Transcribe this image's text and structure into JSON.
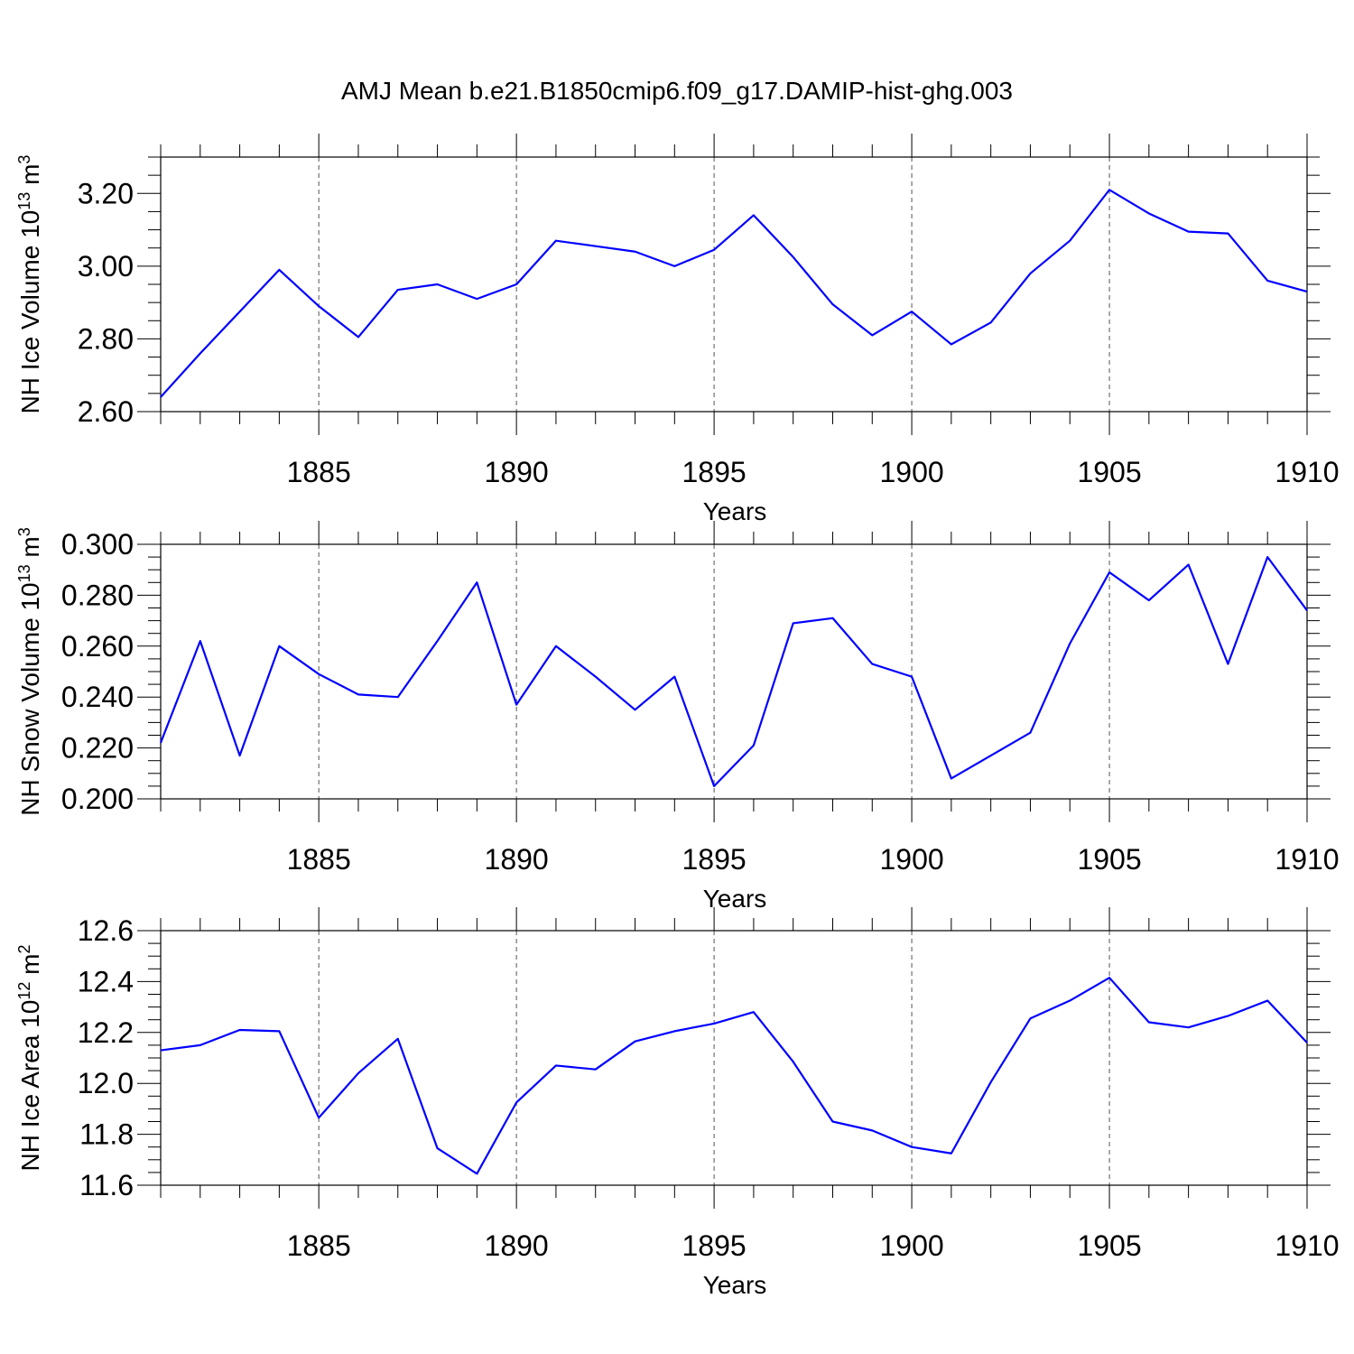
{
  "title": "AMJ Mean b.e21.B1850cmip6.f09_g17.DAMIP-hist-ghg.003",
  "series_color": "#0000ff",
  "chart_data": [
    {
      "type": "line",
      "id": "ice-volume",
      "ylabel": "NH Ice Volume",
      "ylabel_unit": "10",
      "ylabel_exp": "13",
      "ylabel_unit2": " m",
      "ylabel_exp2": "3",
      "xlabel": "Years",
      "xlim": [
        1881,
        1910
      ],
      "ylim": [
        2.6,
        3.3
      ],
      "yticks": [
        2.6,
        2.8,
        3.0,
        3.2
      ],
      "ytick_labels": [
        "2.60",
        "2.80",
        "3.00",
        "3.20"
      ],
      "yminor_step": 0.05,
      "xticks": [
        1885,
        1890,
        1895,
        1900,
        1905,
        1910
      ],
      "xtick_labels": [
        "1885",
        "1890",
        "1895",
        "1900",
        "1905",
        "1910"
      ],
      "x": [
        1881,
        1882,
        1883,
        1884,
        1885,
        1886,
        1887,
        1888,
        1889,
        1890,
        1891,
        1892,
        1893,
        1894,
        1895,
        1896,
        1897,
        1898,
        1899,
        1900,
        1901,
        1902,
        1903,
        1904,
        1905,
        1906,
        1907,
        1908,
        1909,
        1910
      ],
      "y": [
        2.64,
        2.76,
        2.875,
        2.99,
        2.89,
        2.805,
        2.935,
        2.95,
        2.91,
        2.95,
        3.07,
        3.055,
        3.04,
        3.0,
        3.045,
        3.14,
        3.025,
        2.895,
        2.81,
        2.875,
        2.785,
        2.845,
        2.98,
        3.07,
        3.21,
        3.145,
        3.095,
        3.09,
        2.96,
        2.93
      ]
    },
    {
      "type": "line",
      "id": "snow-volume",
      "ylabel": "NH Snow Volume",
      "ylabel_unit": "10",
      "ylabel_exp": "13",
      "ylabel_unit2": " m",
      "ylabel_exp2": "3",
      "xlabel": "Years",
      "xlim": [
        1881,
        1910
      ],
      "ylim": [
        0.2,
        0.3
      ],
      "yticks": [
        0.2,
        0.22,
        0.24,
        0.26,
        0.28,
        0.3
      ],
      "ytick_labels": [
        "0.200",
        "0.220",
        "0.240",
        "0.260",
        "0.280",
        "0.300"
      ],
      "yminor_step": 0.005,
      "xticks": [
        1885,
        1890,
        1895,
        1900,
        1905,
        1910
      ],
      "xtick_labels": [
        "1885",
        "1890",
        "1895",
        "1900",
        "1905",
        "1910"
      ],
      "x": [
        1881,
        1882,
        1883,
        1884,
        1885,
        1886,
        1887,
        1888,
        1889,
        1890,
        1891,
        1892,
        1893,
        1894,
        1895,
        1896,
        1897,
        1898,
        1899,
        1900,
        1901,
        1902,
        1903,
        1904,
        1905,
        1906,
        1907,
        1908,
        1909,
        1910
      ],
      "y": [
        0.222,
        0.262,
        0.217,
        0.26,
        0.249,
        0.241,
        0.24,
        0.262,
        0.285,
        0.237,
        0.26,
        0.248,
        0.235,
        0.248,
        0.205,
        0.221,
        0.269,
        0.271,
        0.253,
        0.248,
        0.208,
        0.217,
        0.226,
        0.261,
        0.289,
        0.278,
        0.292,
        0.253,
        0.295,
        0.274
      ]
    },
    {
      "type": "line",
      "id": "ice-area",
      "ylabel": "NH Ice Area",
      "ylabel_unit": "10",
      "ylabel_exp": "12",
      "ylabel_unit2": " m",
      "ylabel_exp2": "2",
      "xlabel": "Years",
      "xlim": [
        1881,
        1910
      ],
      "ylim": [
        11.6,
        12.6
      ],
      "yticks": [
        11.6,
        11.8,
        12.0,
        12.2,
        12.4,
        12.6
      ],
      "ytick_labels": [
        "11.6",
        "11.8",
        "12.0",
        "12.2",
        "12.4",
        "12.6"
      ],
      "yminor_step": 0.05,
      "xticks": [
        1885,
        1890,
        1895,
        1900,
        1905,
        1910
      ],
      "xtick_labels": [
        "1885",
        "1890",
        "1895",
        "1900",
        "1905",
        "1910"
      ],
      "x": [
        1881,
        1882,
        1883,
        1884,
        1885,
        1886,
        1887,
        1888,
        1889,
        1890,
        1891,
        1892,
        1893,
        1894,
        1895,
        1896,
        1897,
        1898,
        1899,
        1900,
        1901,
        1902,
        1903,
        1904,
        1905,
        1906,
        1907,
        1908,
        1909,
        1910
      ],
      "y": [
        12.13,
        12.15,
        12.21,
        12.205,
        11.865,
        12.04,
        12.175,
        11.745,
        11.645,
        11.925,
        12.07,
        12.055,
        12.165,
        12.205,
        12.235,
        12.28,
        12.085,
        11.85,
        11.815,
        11.75,
        11.725,
        12.005,
        12.255,
        12.325,
        12.415,
        12.24,
        12.22,
        12.265,
        12.325,
        12.16
      ]
    }
  ]
}
